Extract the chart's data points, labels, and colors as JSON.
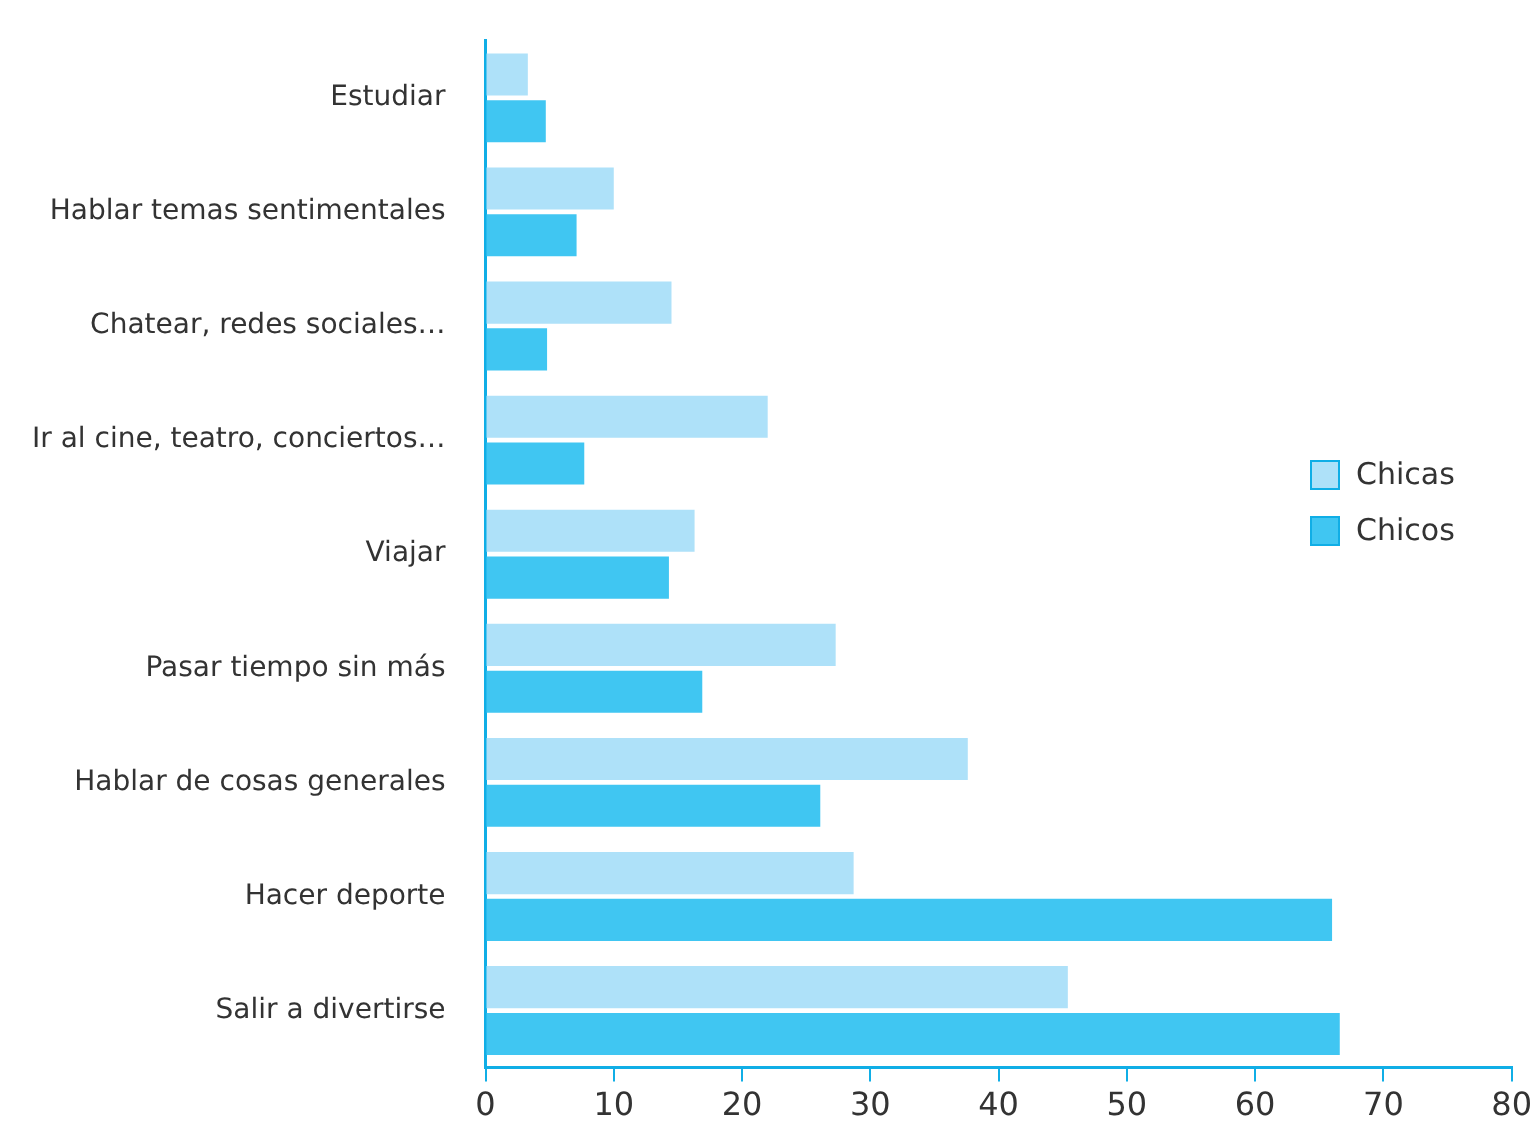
{
  "chart_data": {
    "type": "bar",
    "orientation": "horizontal",
    "categories": [
      "Estudiar",
      "Hablar temas sentimentales",
      "Chatear, redes sociales…",
      "Ir al cine, teatro, conciertos…",
      "Viajar",
      "Pasar tiempo sin más",
      "Hablar de cosas generales",
      "Hacer deporte",
      "Salir a divertirse"
    ],
    "series": [
      {
        "name": "Chicas",
        "color": "#aee1f9",
        "values": [
          3.3,
          10.0,
          14.5,
          22.0,
          16.3,
          27.3,
          37.6,
          28.7,
          45.4
        ]
      },
      {
        "name": "Chicos",
        "color": "#40c6f2",
        "values": [
          4.7,
          7.1,
          4.8,
          7.7,
          14.3,
          16.9,
          26.1,
          66.0,
          66.6
        ]
      }
    ],
    "xlim": [
      0,
      80
    ],
    "xticks": [
      0,
      10,
      20,
      30,
      40,
      50,
      60,
      70,
      80
    ],
    "grid": false,
    "legend": "right"
  }
}
